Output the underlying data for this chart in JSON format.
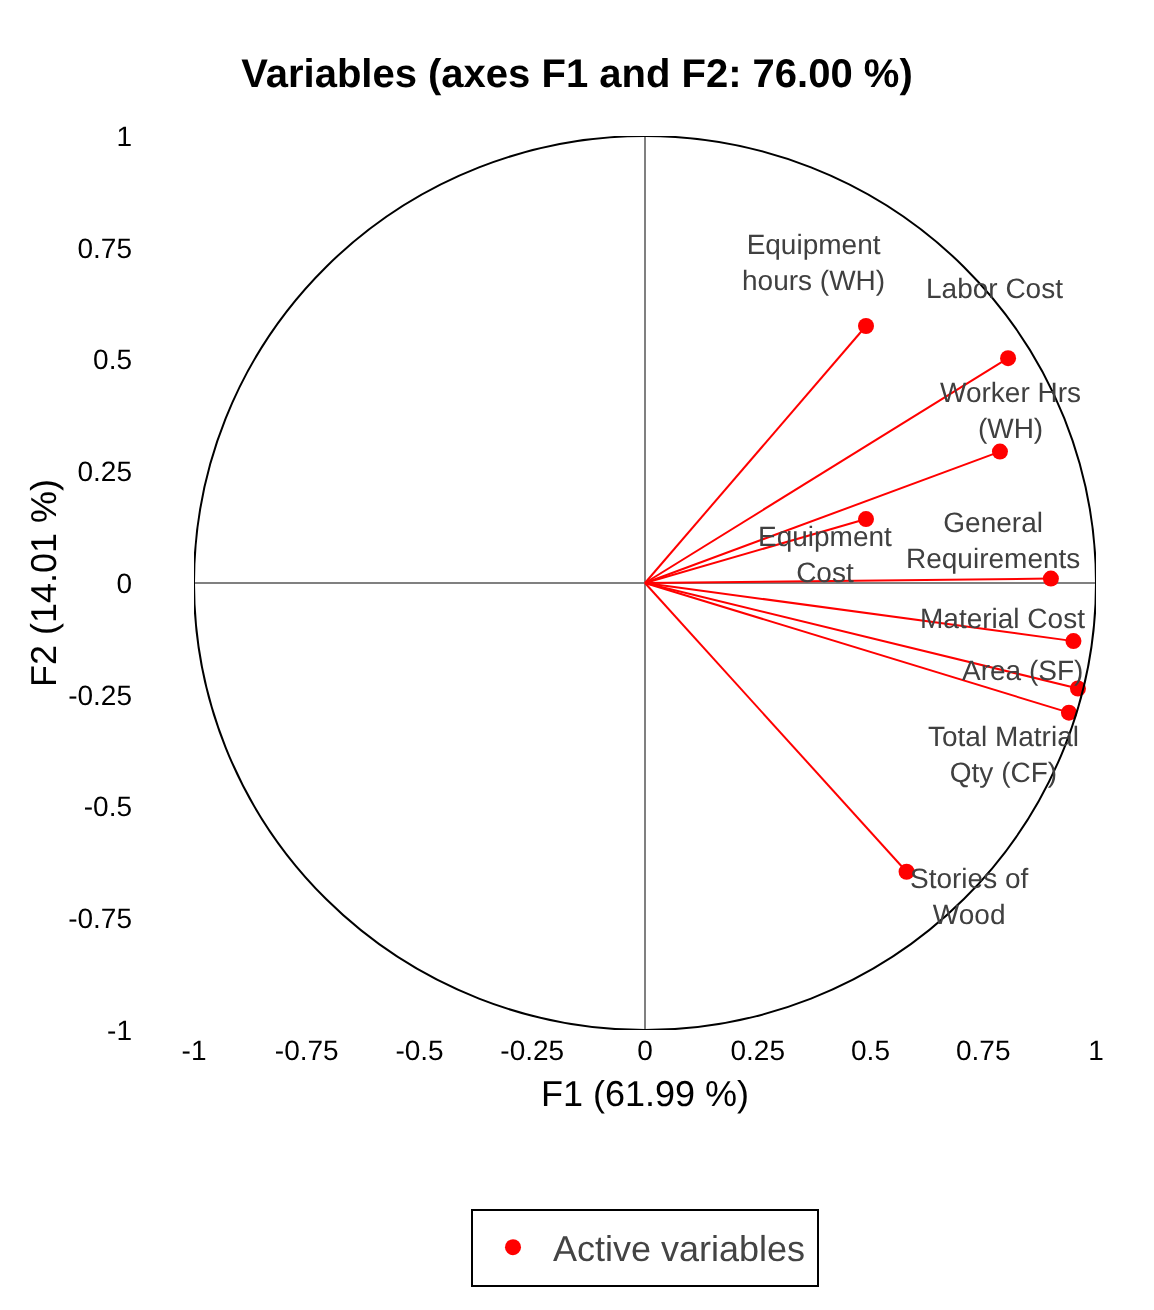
{
  "chart_data": {
    "type": "scatter",
    "title": "Variables (axes F1 and F2: 76.00 %)",
    "xlabel": "F1 (61.99 %)",
    "ylabel": "F2 (14.01 %)",
    "x": [
      0.49,
      0.805,
      0.787,
      0.49,
      0.9,
      0.95,
      0.96,
      0.94,
      0.58
    ],
    "series": [
      {
        "name": "Active variables",
        "color": "#ff0000",
        "values": [
          0.575,
          0.503,
          0.294,
          0.143,
          0.01,
          -0.13,
          -0.236,
          -0.29,
          -0.646
        ]
      }
    ],
    "annotations": [
      {
        "text": "Equipment\nhours (WH)",
        "x": 0.49,
        "y": 0.575
      },
      {
        "text": "Labor Cost",
        "x": 0.805,
        "y": 0.503
      },
      {
        "text": "Worker Hrs\n(WH)",
        "x": 0.787,
        "y": 0.294
      },
      {
        "text": "Equipment\nCost",
        "x": 0.49,
        "y": 0.143
      },
      {
        "text": "General\nRequirements",
        "x": 0.9,
        "y": 0.01
      },
      {
        "text": "Material Cost",
        "x": 0.95,
        "y": -0.13
      },
      {
        "text": "Area (SF)",
        "x": 0.96,
        "y": -0.236
      },
      {
        "text": "Total Matrial\nQty (CF)",
        "x": 0.94,
        "y": -0.29
      },
      {
        "text": "Stories of\nWood",
        "x": 0.58,
        "y": -0.646
      }
    ],
    "xlim": [
      -1,
      1
    ],
    "ylim": [
      -1,
      1
    ],
    "xticks": [
      -1,
      -0.75,
      -0.5,
      -0.25,
      0,
      0.25,
      0.5,
      0.75,
      1
    ],
    "yticks": [
      -1,
      -0.75,
      -0.5,
      -0.25,
      0,
      0.25,
      0.5,
      0.75,
      1
    ],
    "marker": "circle",
    "legend": "bottom"
  }
}
